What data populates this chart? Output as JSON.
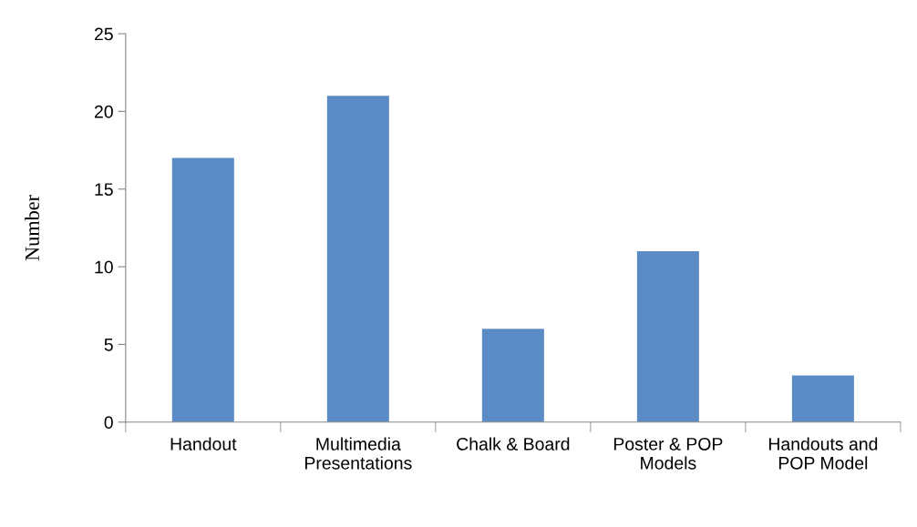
{
  "chart_data": {
    "type": "bar",
    "ylabel": "Number",
    "categories": [
      "Handout",
      "Multimedia\nPresentations",
      "Chalk & Board",
      "Poster & POP\nModels",
      "Handouts and\nPOP Model"
    ],
    "values": [
      17,
      21,
      6,
      11,
      3
    ],
    "color": "#5b8bc5",
    "ylim": [
      0,
      25
    ],
    "yticks": [
      0,
      5,
      10,
      15,
      20,
      25
    ],
    "grid": false
  }
}
